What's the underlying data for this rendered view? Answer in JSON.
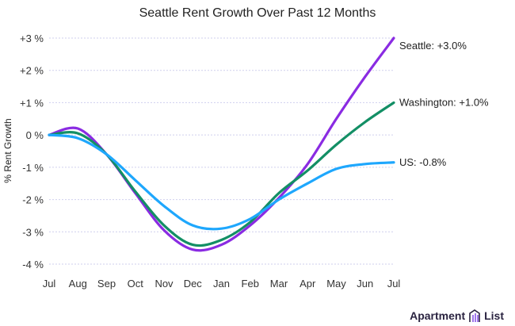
{
  "chart_data": {
    "type": "line",
    "title": "Seattle Rent Growth Over Past 12 Months",
    "xlabel": "",
    "ylabel": "% Rent Growth",
    "categories": [
      "Jul",
      "Aug",
      "Sep",
      "Oct",
      "Nov",
      "Dec",
      "Jan",
      "Feb",
      "Mar",
      "Apr",
      "May",
      "Jun",
      "Jul"
    ],
    "yticks": [
      3,
      2,
      1,
      0,
      -1,
      -2,
      -3,
      -4
    ],
    "ytick_labels": [
      "+3 %",
      "+2 %",
      "+1 %",
      "0 %",
      "-1 %",
      "-2 %",
      "-3 %",
      "-4 %"
    ],
    "ylim": [
      -4,
      3
    ],
    "grid": true,
    "series": [
      {
        "name": "Seattle",
        "end_label": "Seattle: +3.0%",
        "color": "#8a2be2",
        "values": [
          0,
          0.2,
          -0.6,
          -1.8,
          -2.95,
          -3.55,
          -3.4,
          -2.8,
          -1.95,
          -0.9,
          0.5,
          1.8,
          3.0
        ]
      },
      {
        "name": "Washington",
        "end_label": "Washington: +1.0%",
        "color": "#138f65",
        "values": [
          0,
          0.05,
          -0.6,
          -1.75,
          -2.8,
          -3.4,
          -3.25,
          -2.7,
          -1.8,
          -1.1,
          -0.3,
          0.4,
          1.0
        ]
      },
      {
        "name": "US",
        "end_label": "US: -0.8%",
        "color": "#1ea7fd",
        "values": [
          0,
          -0.1,
          -0.6,
          -1.4,
          -2.2,
          -2.8,
          -2.9,
          -2.6,
          -2.0,
          -1.5,
          -1.05,
          -0.9,
          -0.85
        ]
      }
    ]
  },
  "brand": {
    "logo_left": "Apartment",
    "logo_right": "List"
  }
}
